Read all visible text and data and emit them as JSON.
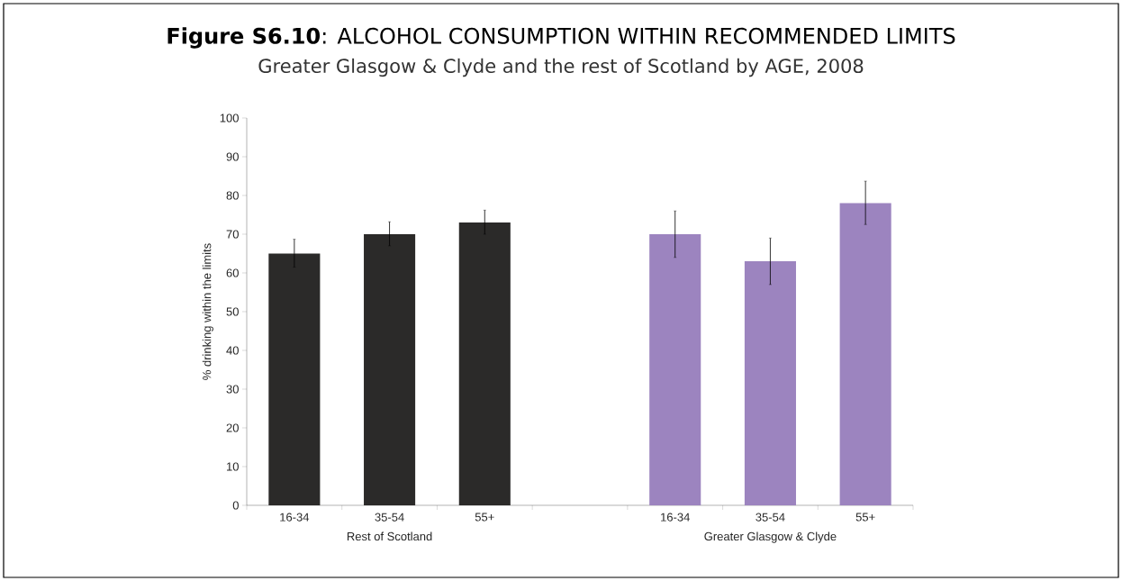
{
  "chart_data": {
    "type": "bar",
    "title": "**Figure S6.10**: ALCOHOL CONSUMPTION WITHIN RECOMMENDED LIMITS",
    "subtitle": "Greater Glasgow & Clyde and the rest of Scotland by AGE, 2008",
    "ylabel": "% drinking within the limits",
    "categories": [
      "16-34",
      "35-54",
      "55+",
      null,
      "16-34",
      "35-54",
      "55+"
    ],
    "values": [
      65,
      70,
      73,
      null,
      70,
      63,
      78
    ],
    "errors": [
      [
        61.5,
        68.7
      ],
      [
        67,
        73.2
      ],
      [
        70,
        76.2
      ],
      null,
      [
        64,
        76
      ],
      [
        57,
        69
      ],
      [
        72.5,
        83.7
      ]
    ],
    "colors": [
      "#2b2a29",
      "#2b2a29",
      "#2b2a29",
      "#ffffff",
      "#9c84bf",
      "#9c84bf",
      "#9c84bf"
    ],
    "annotations": [
      "Rest of Scotland",
      "Greater Glasgow & Clyde"
    ],
    "ylim": [
      0,
      100
    ],
    "yticks": [
      0,
      10,
      20,
      30,
      40,
      50,
      60,
      70,
      80,
      90,
      100
    ],
    "grid": false
  }
}
